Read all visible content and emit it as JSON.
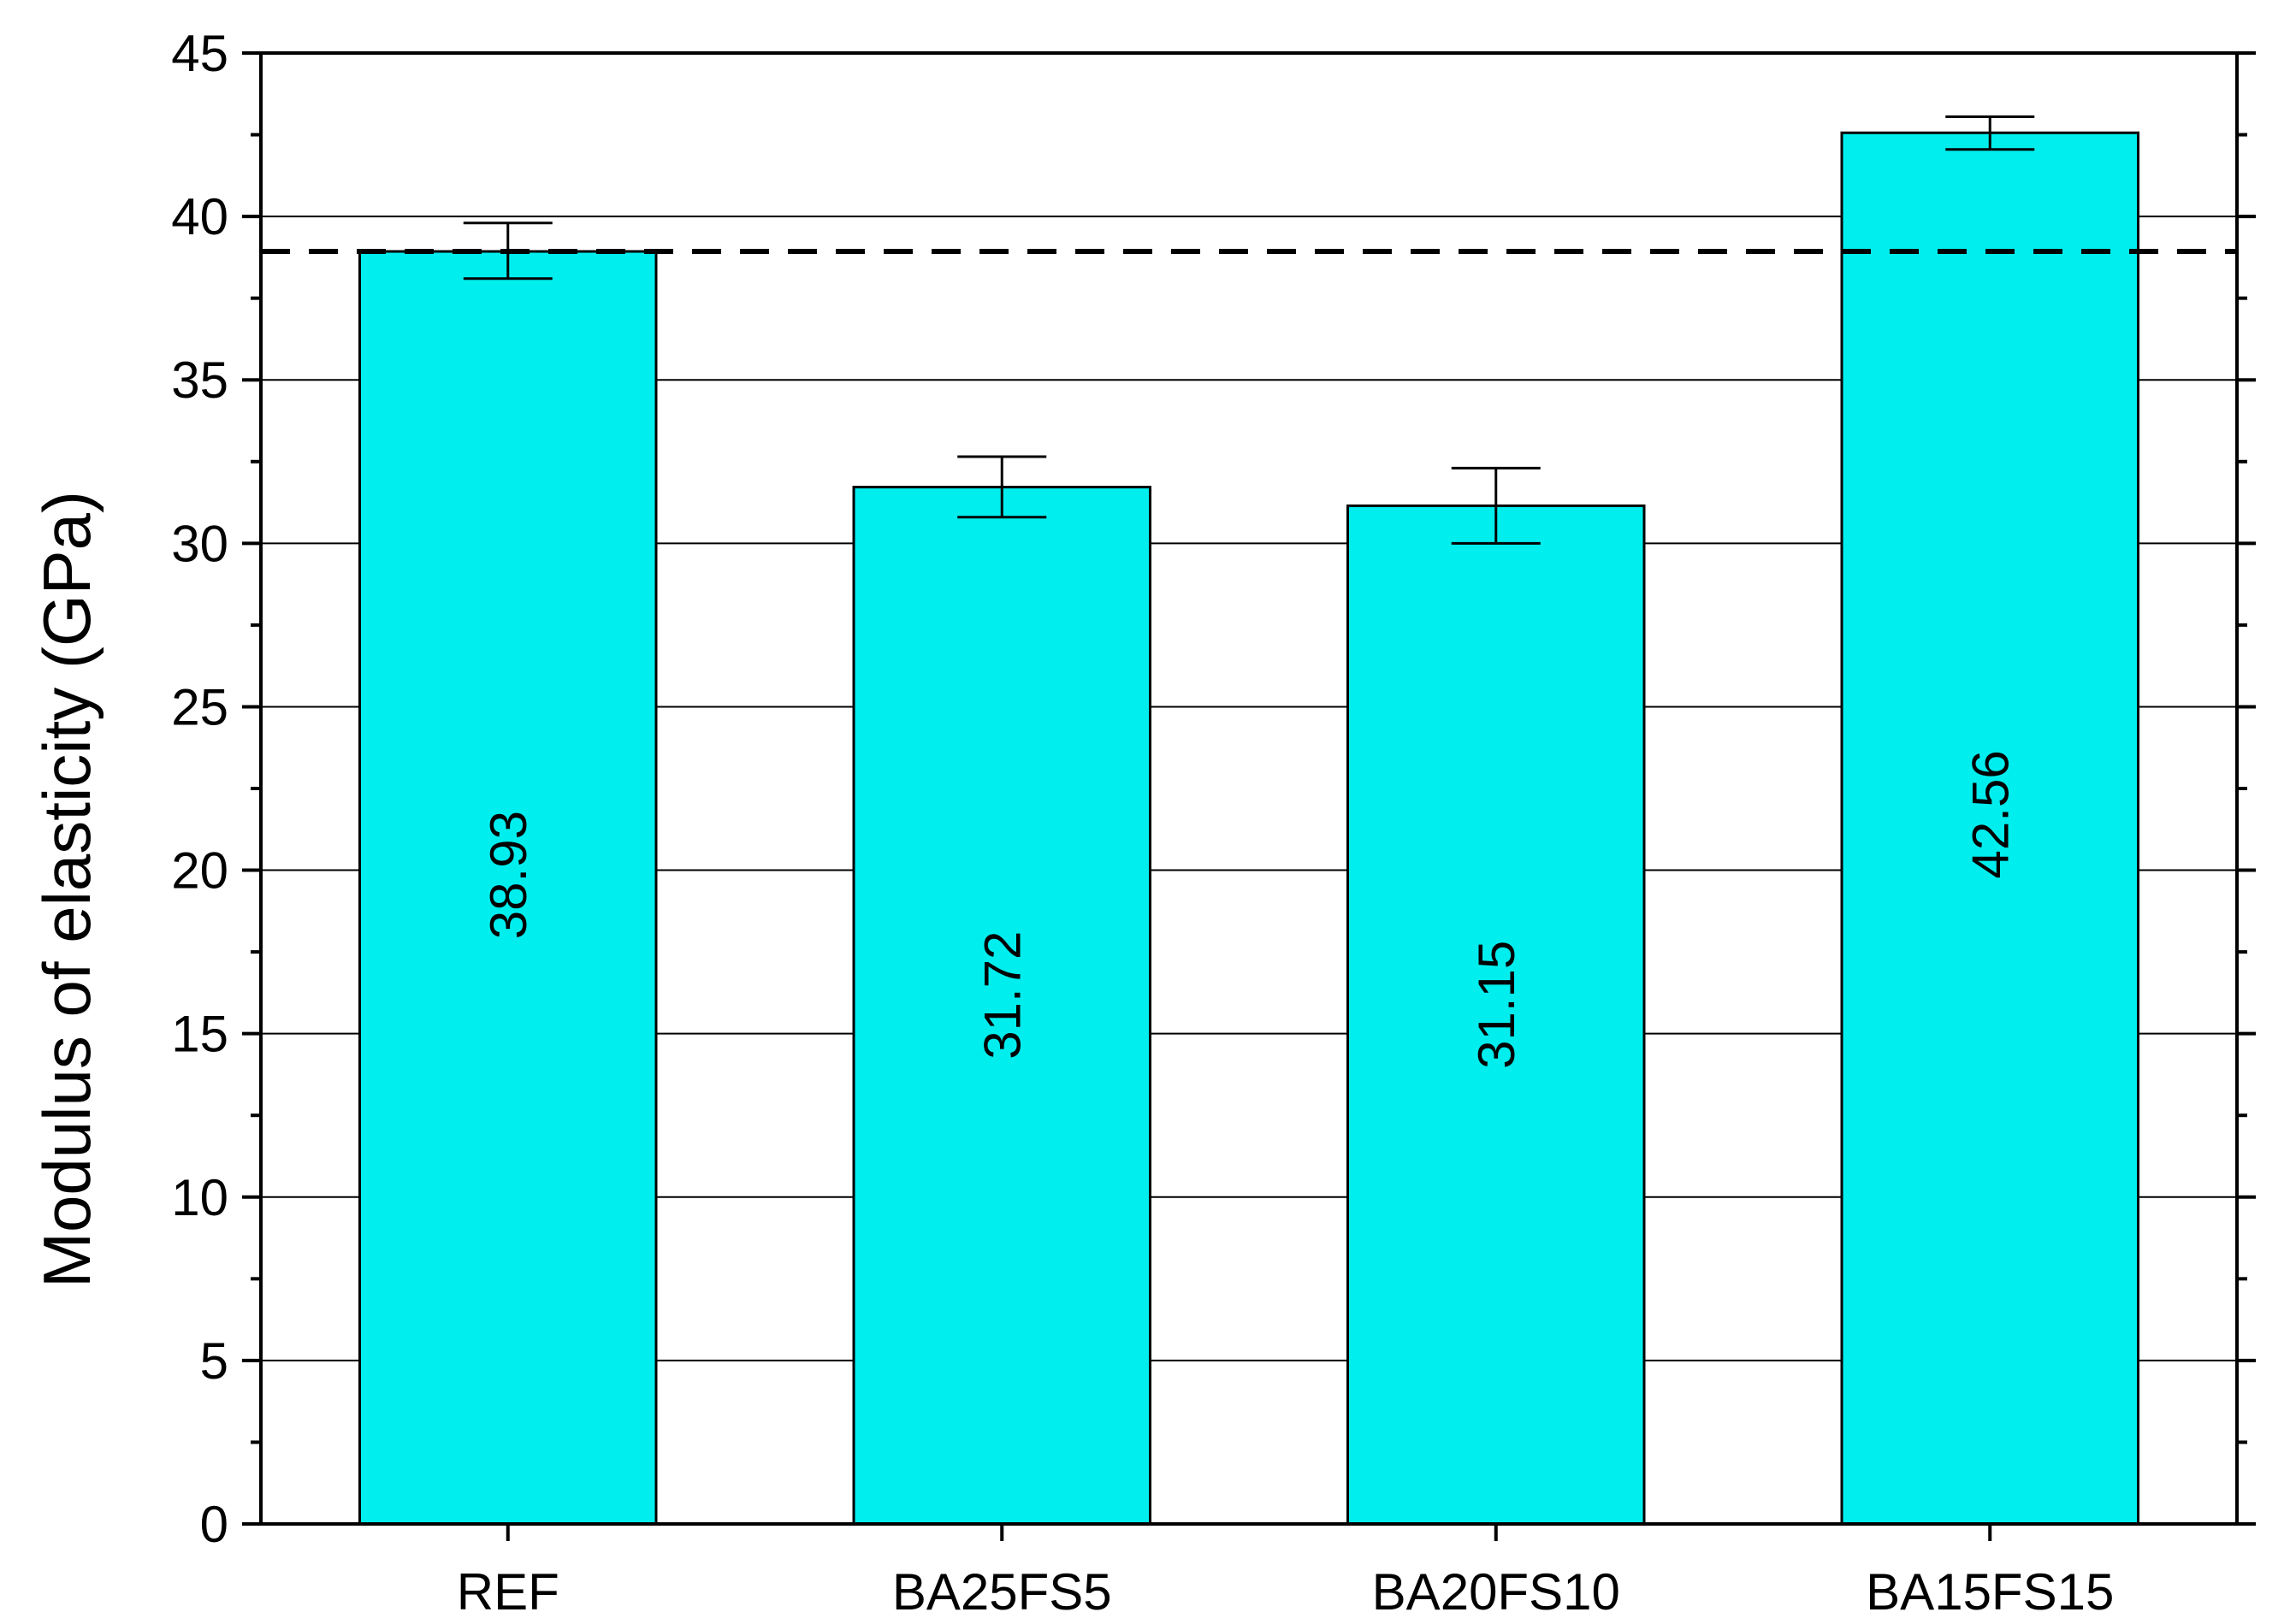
{
  "chart_data": {
    "type": "bar",
    "title": "",
    "xlabel": "",
    "ylabel": "Modulus of elasticity (GPa)",
    "categories": [
      "REF",
      "BA25FS5",
      "BA20FS10",
      "BA15FS15"
    ],
    "values": [
      38.93,
      31.72,
      31.15,
      42.56
    ],
    "value_labels": [
      "38.93",
      "31.72",
      "31.15",
      "42.56"
    ],
    "error_bars": [
      {
        "low": 38.1,
        "high": 39.8
      },
      {
        "low": 30.8,
        "high": 32.65
      },
      {
        "low": 30.0,
        "high": 32.3
      },
      {
        "low": 42.05,
        "high": 43.05
      }
    ],
    "reference_line": {
      "value": 38.93,
      "style": "dashed"
    },
    "ylim": [
      0,
      45
    ],
    "yticks": [
      "0",
      "5",
      "10",
      "15",
      "20",
      "25",
      "30",
      "35",
      "40",
      "45"
    ],
    "grid": "horizontal major",
    "legend": "none",
    "colors": {
      "bar_fill": "#00EEEE",
      "bar_stroke": "#000000",
      "grid": "#000000"
    }
  }
}
